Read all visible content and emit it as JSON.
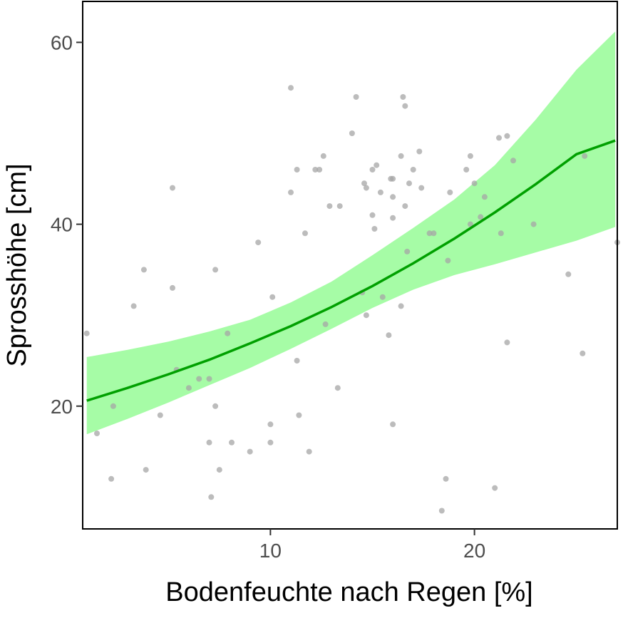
{
  "chart_data": {
    "type": "scatter",
    "title": "",
    "xlabel": "Bodenfeuchte nach Regen [%]",
    "ylabel": "Sprosshöhe [cm]",
    "xlim": [
      0.8,
      27.0
    ],
    "ylim": [
      6.5,
      64.5
    ],
    "x_ticks": [
      10,
      20
    ],
    "y_ticks": [
      20,
      40,
      60
    ],
    "x_tick_labels": [
      "10",
      "20"
    ],
    "y_tick_labels": [
      "20",
      "40",
      "60"
    ],
    "grid": false,
    "colors": {
      "points": "#a6a6a6",
      "fit_line": "#00a000",
      "ribbon": "#a6fca6",
      "frame": "#000000"
    },
    "points": [
      [
        1.0,
        28.0
      ],
      [
        1.5,
        17.0
      ],
      [
        2.2,
        12.0
      ],
      [
        2.3,
        20.0
      ],
      [
        3.3,
        31.0
      ],
      [
        3.8,
        35.0
      ],
      [
        3.9,
        13.0
      ],
      [
        4.6,
        19.0
      ],
      [
        5.2,
        44.0
      ],
      [
        5.2,
        33.0
      ],
      [
        5.4,
        24.0
      ],
      [
        6.0,
        22.0
      ],
      [
        6.5,
        23.0
      ],
      [
        7.0,
        23.0
      ],
      [
        7.0,
        16.0
      ],
      [
        7.1,
        10.0
      ],
      [
        7.3,
        35.0
      ],
      [
        7.3,
        20.0
      ],
      [
        7.5,
        13.0
      ],
      [
        7.9,
        28.0
      ],
      [
        8.1,
        16.0
      ],
      [
        9.0,
        15.0
      ],
      [
        9.4,
        38.0
      ],
      [
        10.0,
        16.0
      ],
      [
        10.0,
        18.0
      ],
      [
        10.1,
        32.0
      ],
      [
        11.0,
        43.5
      ],
      [
        11.0,
        55.0
      ],
      [
        11.3,
        46.0
      ],
      [
        11.3,
        25.0
      ],
      [
        11.4,
        19.0
      ],
      [
        11.7,
        39.0
      ],
      [
        11.9,
        15.0
      ],
      [
        12.2,
        46.0
      ],
      [
        12.4,
        46.0
      ],
      [
        12.6,
        47.5
      ],
      [
        12.7,
        29.0
      ],
      [
        12.9,
        42.0
      ],
      [
        13.3,
        22.0
      ],
      [
        13.4,
        42.0
      ],
      [
        14.0,
        50.0
      ],
      [
        14.2,
        54.0
      ],
      [
        14.5,
        32.5
      ],
      [
        14.6,
        44.5
      ],
      [
        14.7,
        30.0
      ],
      [
        14.7,
        44.0
      ],
      [
        15.0,
        41.0
      ],
      [
        15.0,
        46.0
      ],
      [
        15.1,
        39.5
      ],
      [
        15.2,
        46.5
      ],
      [
        15.4,
        43.5
      ],
      [
        15.5,
        32.0
      ],
      [
        15.8,
        27.8
      ],
      [
        15.9,
        45.0
      ],
      [
        16.0,
        18.0
      ],
      [
        16.0,
        45.0
      ],
      [
        16.0,
        40.7
      ],
      [
        16.0,
        43.0
      ],
      [
        16.4,
        47.5
      ],
      [
        16.4,
        31.0
      ],
      [
        16.5,
        54.0
      ],
      [
        16.6,
        53.0
      ],
      [
        16.6,
        42.0
      ],
      [
        16.7,
        37.0
      ],
      [
        16.8,
        44.5
      ],
      [
        17.0,
        46.0
      ],
      [
        17.3,
        48.0
      ],
      [
        17.4,
        44.0
      ],
      [
        17.8,
        39.0
      ],
      [
        18.0,
        39.0
      ],
      [
        18.4,
        8.5
      ],
      [
        18.6,
        12.0
      ],
      [
        18.7,
        36.0
      ],
      [
        18.8,
        43.5
      ],
      [
        19.6,
        46.0
      ],
      [
        19.8,
        40.0
      ],
      [
        19.8,
        47.5
      ],
      [
        20.0,
        44.5
      ],
      [
        20.3,
        40.8
      ],
      [
        20.5,
        43.0
      ],
      [
        21.0,
        11.0
      ],
      [
        21.2,
        49.5
      ],
      [
        21.3,
        39.0
      ],
      [
        21.6,
        27.0
      ],
      [
        21.6,
        49.7
      ],
      [
        21.9,
        47.0
      ],
      [
        22.9,
        40.0
      ],
      [
        24.6,
        34.5
      ],
      [
        25.3,
        25.8
      ],
      [
        25.4,
        47.5
      ],
      [
        27.0,
        38.0
      ]
    ],
    "fit": {
      "x": [
        1.0,
        3.0,
        5.0,
        7.0,
        9.0,
        11.0,
        13.0,
        15.0,
        17.0,
        19.0,
        21.0,
        23.0,
        25.0,
        26.9
      ],
      "y": [
        20.6,
        22.0,
        23.5,
        25.1,
        26.9,
        28.8,
        30.9,
        33.2,
        35.7,
        38.4,
        41.3,
        44.4,
        47.7,
        49.2
      ],
      "lower": [
        16.9,
        18.6,
        20.4,
        22.3,
        24.2,
        26.3,
        28.5,
        30.8,
        32.8,
        34.4,
        35.6,
        36.9,
        38.2,
        39.7
      ],
      "upper": [
        25.4,
        26.2,
        27.1,
        28.2,
        29.5,
        31.4,
        33.7,
        36.6,
        39.6,
        42.7,
        46.5,
        51.5,
        57.0,
        61.2
      ]
    }
  }
}
